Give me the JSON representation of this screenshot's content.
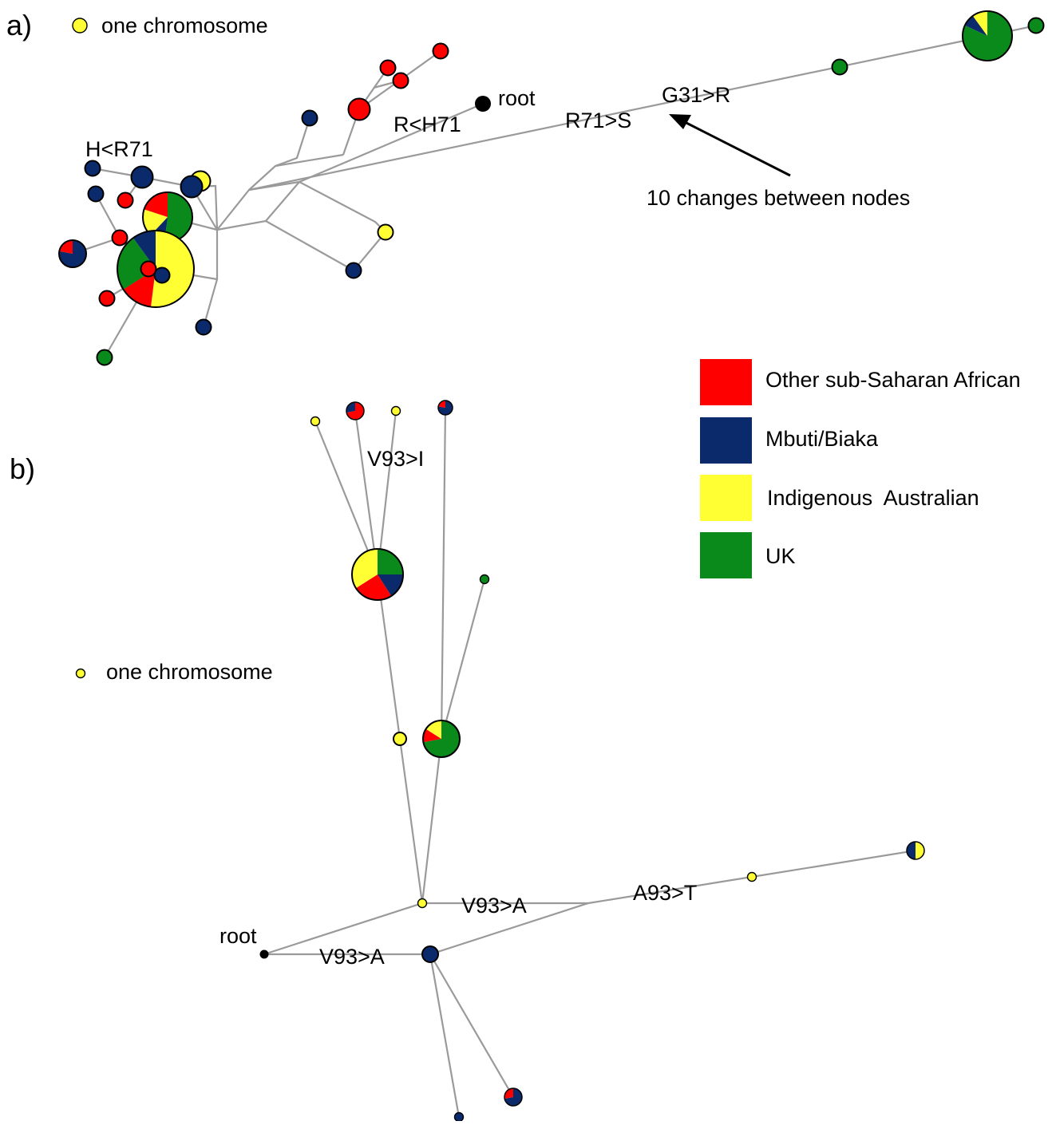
{
  "panel_a": {
    "label": "a)",
    "key_text": "one chromosome",
    "root_label": "root",
    "mutations": [
      "H<R71",
      "R<H71",
      "R71>S",
      "G31>R"
    ],
    "arrow_note": "10 changes between nodes"
  },
  "panel_b": {
    "label": "b)",
    "key_text": "one chromosome",
    "root_label": "root",
    "mutations": [
      "V93>I",
      "V93>A",
      "V93>A",
      "A93>T"
    ]
  },
  "legend": {
    "placement": "right",
    "entries": [
      {
        "label": "Other sub-Saharan African",
        "color": "#ff0000"
      },
      {
        "label": "Mbuti/Biaka",
        "color": "#0a2a6b"
      },
      {
        "label": "Indigenous  Australian",
        "color": "#ffff33"
      },
      {
        "label": "UK",
        "color": "#0a8a1a"
      }
    ]
  },
  "colors": {
    "red": "#ff0000",
    "blue": "#0a2a6b",
    "yellow": "#ffff33",
    "green": "#0a8a1a",
    "edge": "#9a9a9a",
    "root": "#000000"
  }
}
